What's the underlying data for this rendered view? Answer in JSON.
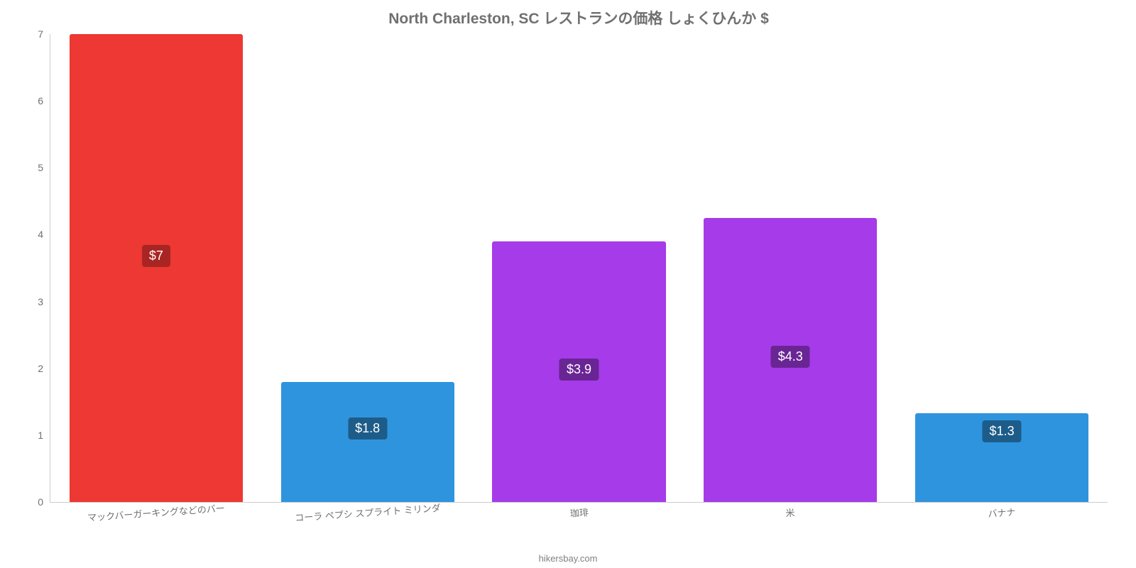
{
  "chart": {
    "type": "bar",
    "title": "North Charleston, SC レストランの価格 しょくひんか $",
    "title_fontsize": 21,
    "title_color": "#707070",
    "background_color": "#ffffff",
    "attribution": "hikersbay.com",
    "y_axis": {
      "min": 0,
      "max": 7,
      "tick_step": 1,
      "label_color": "#707070",
      "label_fontsize": 14,
      "ticks": [
        0,
        1,
        2,
        3,
        4,
        5,
        6,
        7
      ]
    },
    "x_axis": {
      "label_color": "#707070",
      "label_fontsize": 13,
      "label_rotation_deg": -4
    },
    "bar_width_ratio": 0.82,
    "categories": [
      "マックバーガーキングなどのバー",
      "コーラ ペプシ スプライト ミリンダ",
      "珈琲",
      "米",
      "バナナ"
    ],
    "values": [
      7.0,
      1.8,
      3.9,
      4.25,
      1.33
    ],
    "value_labels": [
      "$7",
      "$1.8",
      "$3.9",
      "$4.3",
      "$1.3"
    ],
    "bar_colors": [
      "#ed3833",
      "#2f94de",
      "#a63be9",
      "#a63be9",
      "#2f94de"
    ],
    "badge_colors": [
      "#a82523",
      "#1d5c89",
      "#6a2594",
      "#6a2594",
      "#1d5c89"
    ],
    "badge_fontsize": 18,
    "badge_text_color": "#ffffff"
  }
}
